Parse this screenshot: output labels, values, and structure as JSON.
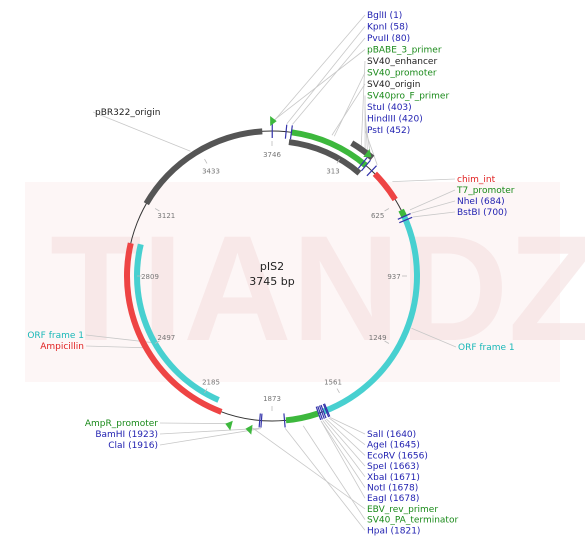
{
  "plasmid": {
    "name": "pIS2",
    "size_label": "3745 bp",
    "length": 3745
  },
  "watermark": "TIANDZ",
  "colors": {
    "blue": "#1f1fb0",
    "green": "#1a8a1a",
    "red": "#e02020",
    "teal": "#1ab8b8",
    "black": "#222222",
    "ring": "#333333",
    "restriction": "#3333aa",
    "leader": "#c8c8c8",
    "feature_green": "#3db83d",
    "feature_red": "#ee4444",
    "feature_teal": "#48d0d0",
    "feature_gray": "#555555"
  },
  "ticks": [
    "3746",
    "313",
    "625",
    "937",
    "1249",
    "1561",
    "1873",
    "2185",
    "2497",
    "2809",
    "3121",
    "3433"
  ],
  "labels_top_right": [
    {
      "text": "BglII (1)",
      "color": "blue"
    },
    {
      "text": "KpnI (58)",
      "color": "blue"
    },
    {
      "text": "PvuII (80)",
      "color": "blue"
    },
    {
      "text": "pBABE_3_primer",
      "color": "green"
    },
    {
      "text": "SV40_enhancer",
      "color": "black"
    },
    {
      "text": "SV40_promoter",
      "color": "green"
    },
    {
      "text": "SV40_origin",
      "color": "black"
    },
    {
      "text": "SV40pro_F_primer",
      "color": "green"
    },
    {
      "text": "StuI (403)",
      "color": "blue"
    },
    {
      "text": "HindIII (420)",
      "color": "blue"
    },
    {
      "text": "PstI (452)",
      "color": "blue"
    }
  ],
  "labels_right": [
    {
      "text": "chim_int",
      "color": "red"
    },
    {
      "text": "T7_promoter",
      "color": "green"
    },
    {
      "text": "NheI (684)",
      "color": "blue"
    },
    {
      "text": "BstBI (700)",
      "color": "blue"
    }
  ],
  "label_orf_right": {
    "text": "ORF frame 1",
    "color": "teal"
  },
  "label_pbr": {
    "text": "pBR322_origin",
    "color": "black"
  },
  "labels_left": [
    {
      "text": "ORF frame 1",
      "color": "teal"
    },
    {
      "text": "Ampicillin",
      "color": "red"
    }
  ],
  "labels_bottom_left": [
    {
      "text": "AmpR_promoter",
      "color": "green"
    },
    {
      "text": "BamHI (1923)",
      "color": "blue"
    },
    {
      "text": "ClaI (1916)",
      "color": "blue"
    }
  ],
  "labels_bottom_right": [
    {
      "text": "SalI (1640)",
      "color": "blue"
    },
    {
      "text": "AgeI (1645)",
      "color": "blue"
    },
    {
      "text": "EcoRV (1656)",
      "color": "blue"
    },
    {
      "text": "SpeI (1663)",
      "color": "blue"
    },
    {
      "text": "XbaI (1671)",
      "color": "blue"
    },
    {
      "text": "NotI (1678)",
      "color": "blue"
    },
    {
      "text": "EagI (1678)",
      "color": "blue"
    },
    {
      "text": "EBV_rev_primer",
      "color": "green"
    },
    {
      "text": "SV40_PA_terminator",
      "color": "green"
    },
    {
      "text": "HpaI (1821)",
      "color": "blue"
    }
  ],
  "features": [
    {
      "name": "sv40-promoter",
      "start": 80,
      "end": 420,
      "color": "feature_green",
      "lane": 0
    },
    {
      "name": "sv40-origin",
      "start": 75,
      "end": 420,
      "color": "feature_gray",
      "lane": 1
    },
    {
      "name": "sv40-enhancer",
      "start": 322,
      "end": 420,
      "color": "feature_gray",
      "lane": -1
    },
    {
      "name": "chim-int",
      "start": 470,
      "end": 605,
      "color": "feature_red",
      "lane": 0
    },
    {
      "name": "t7-promoter",
      "start": 655,
      "end": 684,
      "color": "feature_green",
      "lane": 0
    },
    {
      "name": "orf-frame-right",
      "start": 684,
      "end": 1655,
      "color": "feature_teal",
      "lane": 0
    },
    {
      "name": "sv40-pa-terminator",
      "start": 1680,
      "end": 1815,
      "color": "feature_green",
      "lane": 0
    },
    {
      "name": "ampicillin",
      "start": 2085,
      "end": 2945,
      "color": "feature_red",
      "lane": 0
    },
    {
      "name": "orf-frame-left",
      "start": 2115,
      "end": 2950,
      "color": "feature_teal",
      "lane": 1
    },
    {
      "name": "pbr322-origin",
      "start": 3120,
      "end": 3705,
      "color": "feature_gray",
      "lane": 0
    }
  ],
  "small_arrows": [
    {
      "name": "pbabe-arrow",
      "pos": 3738
    },
    {
      "name": "sv40pro-f-arrow",
      "pos": 390
    },
    {
      "name": "ebv-rev-arrow",
      "pos": 1950
    },
    {
      "name": "ampr-promoter-arrow",
      "pos": 2030
    }
  ],
  "sites": [
    1,
    58,
    80,
    403,
    420,
    452,
    684,
    700,
    1640,
    1645,
    1656,
    1663,
    1671,
    1678,
    1821,
    1916,
    1923
  ]
}
